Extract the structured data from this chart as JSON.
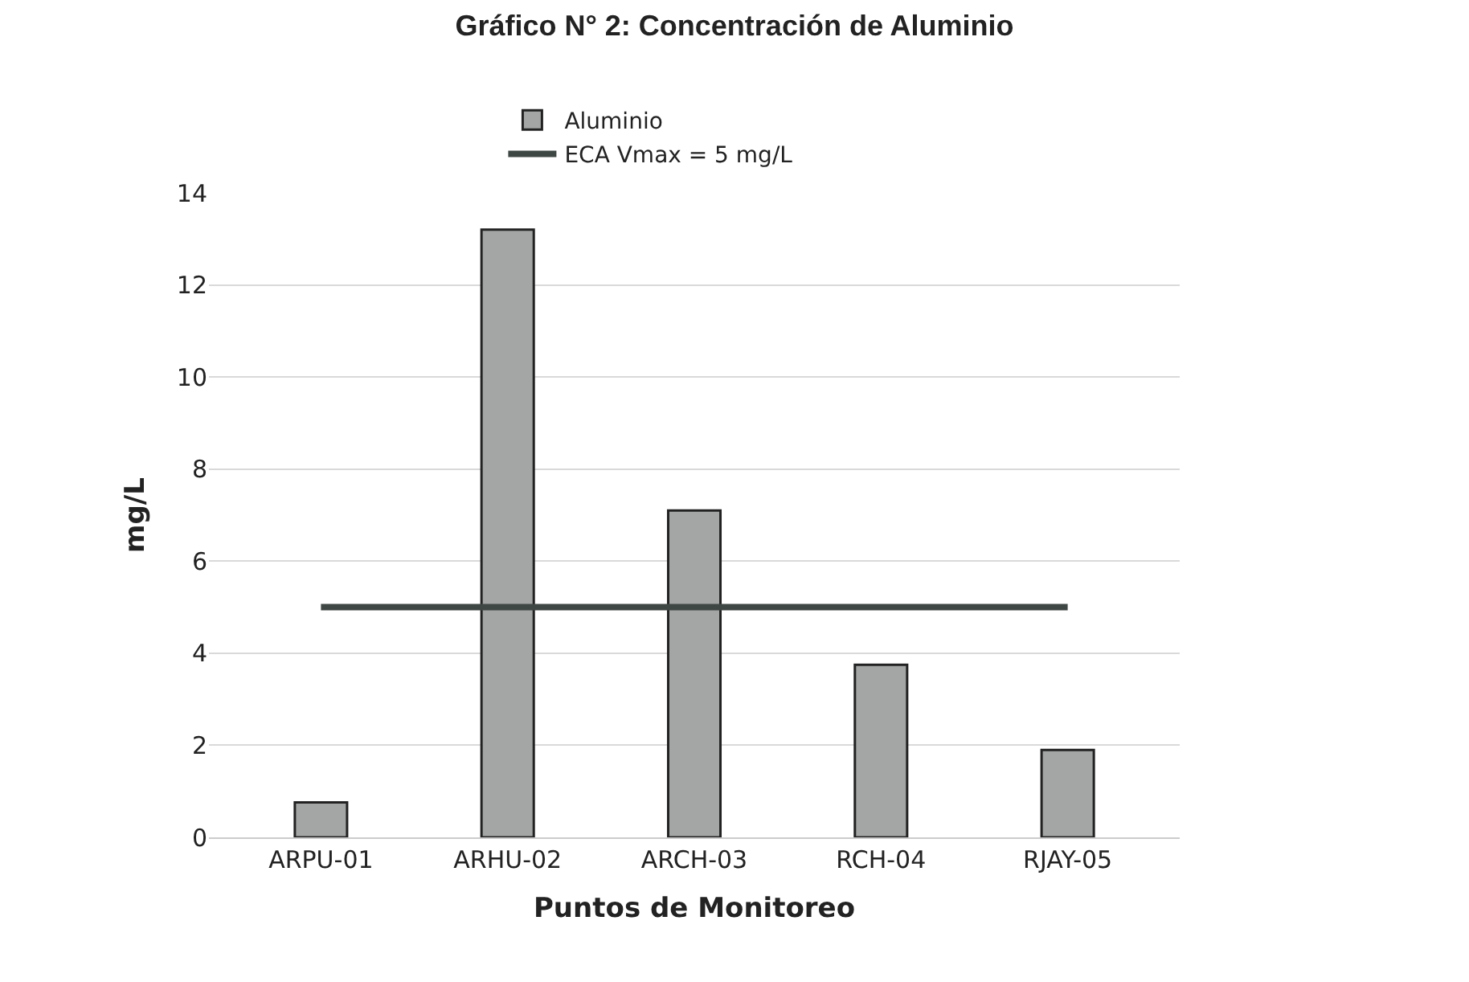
{
  "chart_data": {
    "type": "bar",
    "title": "Gráfico N° 2: Concentración de Aluminio",
    "xlabel": "Puntos de Monitoreo",
    "ylabel": "mg/L",
    "categories": [
      "ARPU-01",
      "ARHU-02",
      "ARCH-03",
      "RCH-04",
      "RJAY-05"
    ],
    "series": [
      {
        "name": "Aluminio",
        "color": "#a3a6a5",
        "values": [
          0.76,
          13.2,
          7.1,
          3.75,
          1.9
        ]
      },
      {
        "name": "ECA Vmax = 5 mg/L",
        "type": "line",
        "color": "#3f4745",
        "values": [
          5,
          5,
          5,
          5,
          5
        ]
      }
    ],
    "ylim": [
      0,
      14
    ],
    "yticks": [
      0,
      2,
      4,
      6,
      8,
      10,
      12,
      14
    ],
    "grid": "y",
    "legend": "top",
    "marker": "none"
  }
}
